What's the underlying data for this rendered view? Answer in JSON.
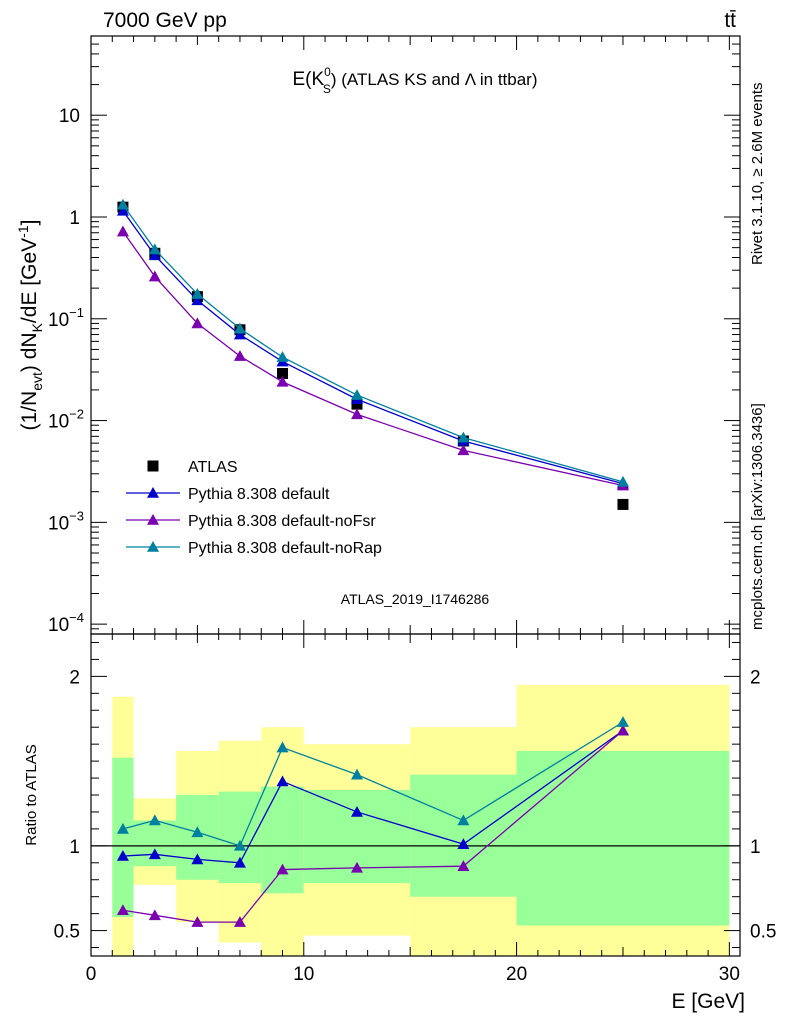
{
  "header": {
    "left": "7000 GeV pp",
    "right": "tt̄"
  },
  "side_text": {
    "rivet": "Rivet 3.1.10, ≥ 2.6M events",
    "mcplots": "mcplots.cern.ch [arXiv:1306.3436]"
  },
  "watermark": "ATLAS_2019_I1746286",
  "colors": {
    "data": "#000000",
    "default": "#0000cc",
    "noFsr": "#7a00b0",
    "noRap": "#0080a0",
    "band_inner": "#99ff99",
    "band_outer": "#ffff99"
  },
  "chart_data": [
    {
      "type": "line",
      "panel": "main",
      "title": "E(K⁰S) (ATLAS KS and Λ in ttbar)",
      "title_parts": {
        "pre": "E(K",
        "sup": "0",
        "sub": "S",
        "post": ") (ATLAS KS and Λ in ttbar)"
      },
      "ylabel": "(1/N_evt) dN_K/dE [GeV^-1]",
      "ylabel_parts": {
        "a": "(1/N",
        "a_sub": "evt",
        "b": ") dN",
        "b_sub": "K",
        "c": "/dE [GeV",
        "c_sup": "-1",
        "d": "]"
      },
      "yscale": "log",
      "ylim": [
        8e-05,
        60
      ],
      "xlim": [
        0,
        30.5
      ],
      "y_ticks": [
        {
          "value": 10,
          "label": "10"
        },
        {
          "value": 1,
          "label": "1"
        },
        {
          "value": 0.1,
          "label": "10",
          "exp": "−1"
        },
        {
          "value": 0.01,
          "label": "10",
          "exp": "−2"
        },
        {
          "value": 0.001,
          "label": "10",
          "exp": "−3"
        },
        {
          "value": 0.0001,
          "label": "10",
          "exp": "−4"
        }
      ],
      "legend_position": "center-left",
      "series": [
        {
          "name": "ATLAS",
          "marker": "square",
          "color": "#000000",
          "x": [
            1.5,
            3,
            5,
            7,
            9,
            12.5,
            17.5,
            25
          ],
          "y": [
            1.25,
            0.44,
            0.165,
            0.078,
            0.029,
            0.0145,
            0.0063,
            0.0015
          ]
        },
        {
          "name": "Pythia 8.308 default",
          "marker": "triangle",
          "color": "#0000cc",
          "x": [
            1.5,
            3,
            5,
            7,
            9,
            12.5,
            17.5,
            25
          ],
          "y": [
            1.15,
            0.42,
            0.152,
            0.07,
            0.038,
            0.0162,
            0.0063,
            0.0024
          ]
        },
        {
          "name": "Pythia 8.308 default-noFsr",
          "marker": "triangle",
          "color": "#7a00b0",
          "x": [
            1.5,
            3,
            5,
            7,
            9,
            12.5,
            17.5,
            25
          ],
          "y": [
            0.72,
            0.26,
            0.09,
            0.043,
            0.024,
            0.0115,
            0.0051,
            0.0023
          ]
        },
        {
          "name": "Pythia 8.308 default-noRap",
          "marker": "triangle",
          "color": "#0080a0",
          "x": [
            1.5,
            3,
            5,
            7,
            9,
            12.5,
            17.5,
            25
          ],
          "y": [
            1.32,
            0.48,
            0.175,
            0.08,
            0.042,
            0.0178,
            0.0068,
            0.0025
          ]
        }
      ]
    },
    {
      "type": "line",
      "panel": "ratio",
      "ylabel": "Ratio to ATLAS",
      "xlabel": "E [GeV]",
      "xlim": [
        0,
        30.5
      ],
      "ylim": [
        0.35,
        2.25
      ],
      "x_ticks": [
        0,
        10,
        20,
        30
      ],
      "y_ticks": [
        0.5,
        1,
        2
      ],
      "reference_line": 1,
      "bands": {
        "edges": [
          1,
          2,
          4,
          6,
          8,
          10,
          15,
          20,
          30
        ],
        "inner_lo": [
          0.58,
          0.88,
          0.8,
          0.78,
          0.72,
          0.78,
          0.7,
          0.53
        ],
        "inner_hi": [
          1.52,
          1.15,
          1.3,
          1.32,
          1.35,
          1.33,
          1.42,
          1.56
        ],
        "outer_lo": [
          0.35,
          0.77,
          0.55,
          0.43,
          0.35,
          0.47,
          0.35,
          0.35
        ],
        "outer_hi": [
          1.88,
          1.28,
          1.56,
          1.62,
          1.7,
          1.6,
          1.7,
          1.95
        ]
      },
      "series": [
        {
          "name": "Pythia 8.308 default",
          "color": "#0000cc",
          "x": [
            1.5,
            3,
            5,
            7,
            9,
            12.5,
            17.5,
            25
          ],
          "y": [
            0.94,
            0.95,
            0.92,
            0.9,
            1.38,
            1.2,
            1.01,
            1.68
          ]
        },
        {
          "name": "Pythia 8.308 default-noFsr",
          "color": "#7a00b0",
          "x": [
            1.5,
            3,
            5,
            7,
            9,
            12.5,
            17.5,
            25
          ],
          "y": [
            0.62,
            0.59,
            0.55,
            0.55,
            0.86,
            0.87,
            0.88,
            1.68
          ]
        },
        {
          "name": "Pythia 8.308 default-noRap",
          "color": "#0080a0",
          "x": [
            1.5,
            3,
            5,
            7,
            9,
            12.5,
            17.5,
            25
          ],
          "y": [
            1.1,
            1.15,
            1.08,
            1.0,
            1.58,
            1.42,
            1.15,
            1.73
          ]
        }
      ]
    }
  ]
}
